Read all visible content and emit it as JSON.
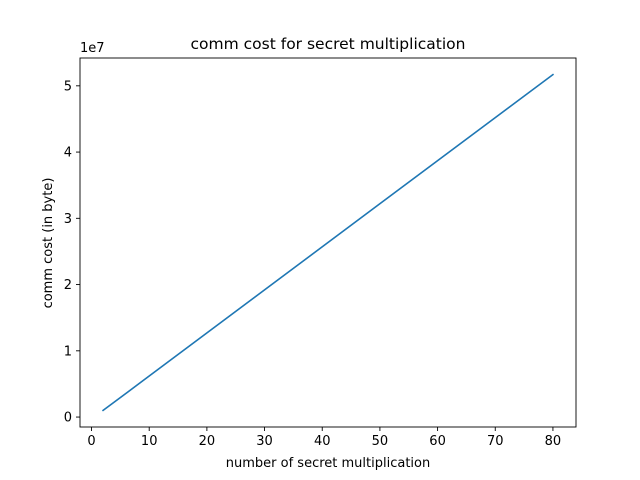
{
  "chart_data": {
    "type": "line",
    "title": "comm cost for secret multiplication",
    "xlabel": "number of secret multiplication",
    "ylabel": "comm cost (in byte)",
    "y_offset_label": "1e7",
    "xlim": [
      -2,
      84
    ],
    "ylim": [
      -0.15,
      5.42
    ],
    "x_ticks": [
      0,
      10,
      20,
      30,
      40,
      50,
      60,
      70,
      80
    ],
    "x_tick_labels": [
      "0",
      "10",
      "20",
      "30",
      "40",
      "50",
      "60",
      "70",
      "80"
    ],
    "y_ticks": [
      0,
      1,
      2,
      3,
      4,
      5
    ],
    "y_tick_labels": [
      "0",
      "1",
      "2",
      "3",
      "4",
      "5"
    ],
    "grid": false,
    "series": [
      {
        "color": "#1f77b4",
        "x": [
          2,
          80
        ],
        "y": [
          0.1,
          5.17
        ]
      }
    ]
  }
}
